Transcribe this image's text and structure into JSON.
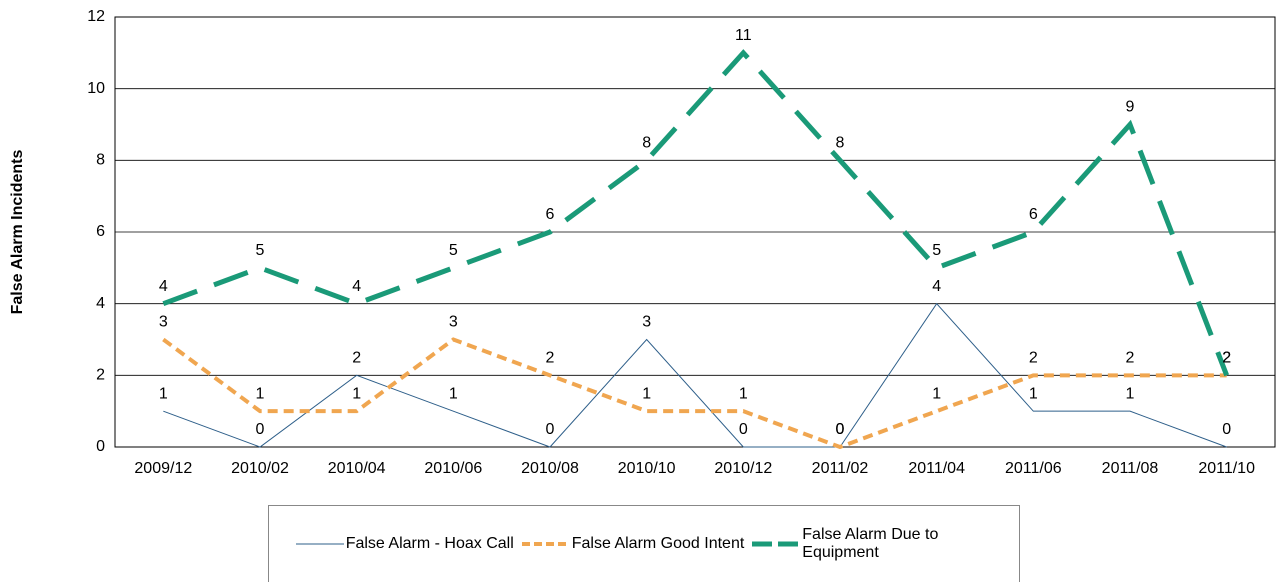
{
  "chart_data": {
    "type": "line",
    "y_label": "False Alarm Incidents",
    "categories": [
      "2009/12",
      "2010/02",
      "2010/04",
      "2010/06",
      "2010/08",
      "2010/10",
      "2010/12",
      "2011/02",
      "2011/04",
      "2011/06",
      "2011/08",
      "2011/10"
    ],
    "series": [
      {
        "name": "False Alarm - Hoax Call",
        "color": "#2e5f8a",
        "values": [
          1,
          0,
          2,
          1,
          0,
          3,
          0,
          0,
          4,
          1,
          1,
          0
        ]
      },
      {
        "name": "False Alarm Good Intent",
        "color": "#f0a650",
        "values": [
          3,
          1,
          1,
          3,
          2,
          1,
          1,
          0,
          1,
          2,
          2,
          2
        ]
      },
      {
        "name": "False Alarm Due to Equipment",
        "color": "#1a9a78",
        "values": [
          4,
          5,
          4,
          5,
          6,
          8,
          11,
          8,
          5,
          6,
          9,
          2
        ]
      }
    ],
    "ylim": [
      0,
      12
    ],
    "yticks": [
      0,
      2,
      4,
      6,
      8,
      10,
      12
    ],
    "grid": true,
    "legend": "bottom"
  }
}
